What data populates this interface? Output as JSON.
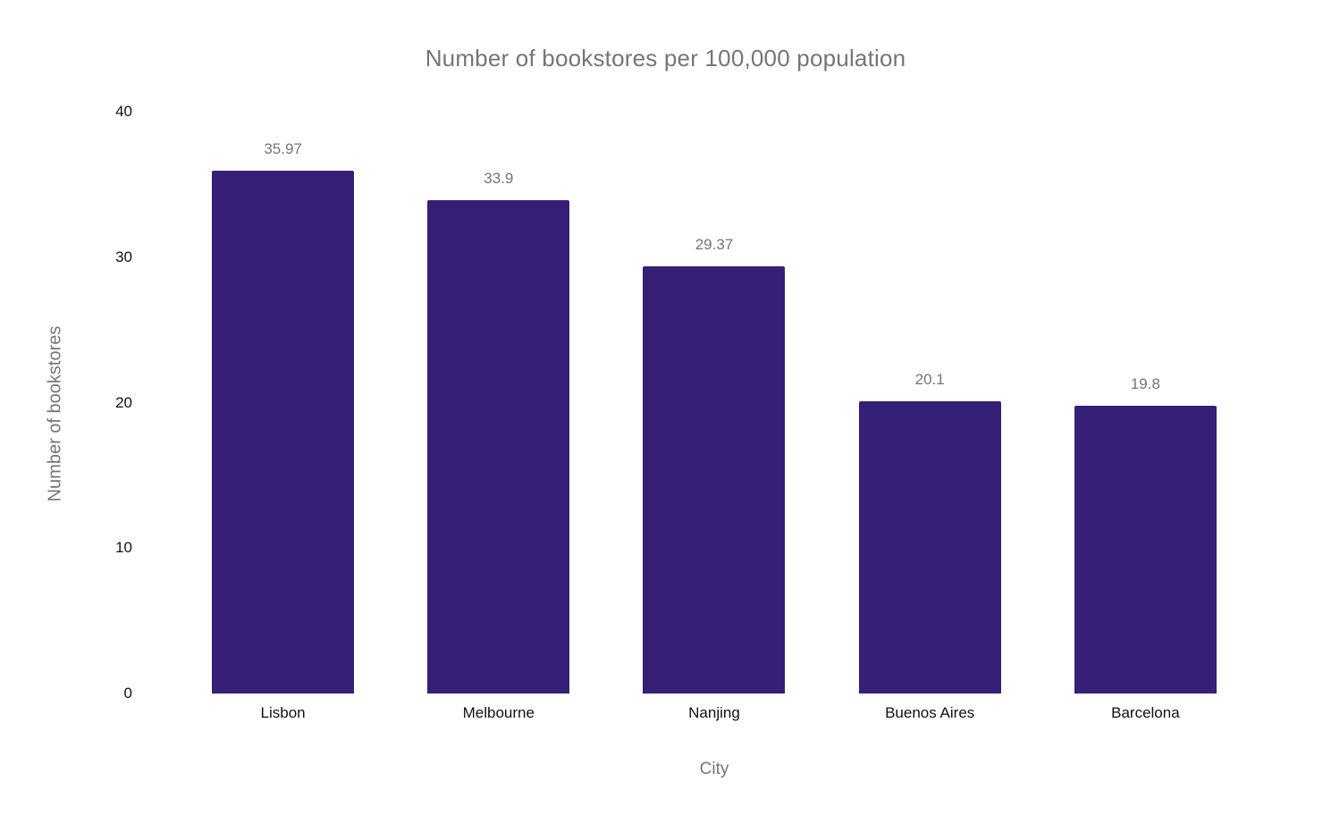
{
  "chart_data": {
    "type": "bar",
    "title": "Number of bookstores per 100,000 population",
    "xlabel": "City",
    "ylabel": "Number of bookstores",
    "categories": [
      "Lisbon",
      "Melbourne",
      "Nanjing",
      "Buenos Aires",
      "Barcelona"
    ],
    "values": [
      35.97,
      33.9,
      29.37,
      20.1,
      19.8
    ],
    "value_labels": [
      "35.97",
      "33.9",
      "29.37",
      "20.1",
      "19.8"
    ],
    "ylim": [
      0,
      40
    ],
    "yticks": [
      0,
      10,
      20,
      30,
      40
    ],
    "grid": false,
    "legend": "none",
    "colors": {
      "bar": "#361F77",
      "muted_text": "#757575",
      "tick_text": "#111111",
      "background": "#ffffff"
    }
  }
}
